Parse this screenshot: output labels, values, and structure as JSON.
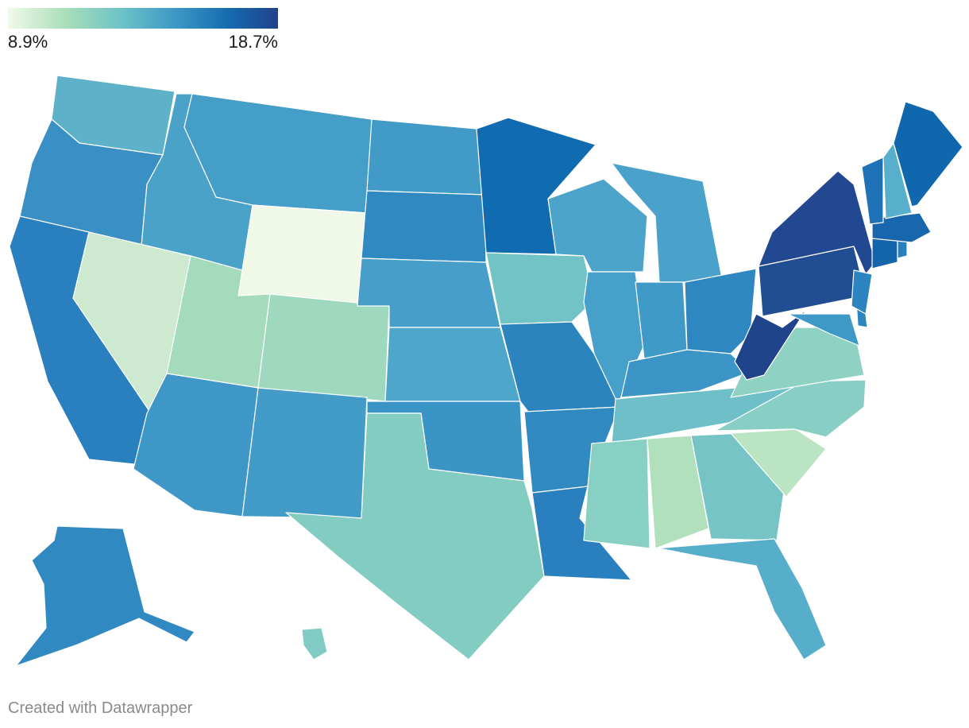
{
  "legend": {
    "min_label": "8.9%",
    "max_label": "18.7%",
    "min_value": 8.9,
    "max_value": 18.7,
    "colors": [
      "#f1f9e9",
      "#a8ddb8",
      "#6cc3c7",
      "#3d98c6",
      "#156aaf",
      "#21428a"
    ]
  },
  "credit": "Created with Datawrapper",
  "states": [
    {
      "id": "WA",
      "color": "#5db1c9"
    },
    {
      "id": "OR",
      "color": "#3a90c4"
    },
    {
      "id": "CA",
      "color": "#2a80be"
    },
    {
      "id": "ID",
      "color": "#4aa2c9"
    },
    {
      "id": "NV",
      "color": "#cdead0"
    },
    {
      "id": "MT",
      "color": "#459ec8"
    },
    {
      "id": "WY",
      "color": "#f0f8e8"
    },
    {
      "id": "UT",
      "color": "#a4dbbc"
    },
    {
      "id": "AZ",
      "color": "#3e97c7"
    },
    {
      "id": "CO",
      "color": "#9ed8bf"
    },
    {
      "id": "NM",
      "color": "#439cc8"
    },
    {
      "id": "ND",
      "color": "#429bc7"
    },
    {
      "id": "SD",
      "color": "#3089c1"
    },
    {
      "id": "NE",
      "color": "#479fc9"
    },
    {
      "id": "KS",
      "color": "#4ea6ca"
    },
    {
      "id": "OK",
      "color": "#3a94c6"
    },
    {
      "id": "TX",
      "color": "#82ccc2"
    },
    {
      "id": "MN",
      "color": "#106bb0"
    },
    {
      "id": "IA",
      "color": "#72c3c6"
    },
    {
      "id": "MO",
      "color": "#2c84bf"
    },
    {
      "id": "AR",
      "color": "#3189c2"
    },
    {
      "id": "LA",
      "color": "#2a80be"
    },
    {
      "id": "WI",
      "color": "#4ca4ca"
    },
    {
      "id": "IL",
      "color": "#47a0c9"
    },
    {
      "id": "MI",
      "color": "#4aa2ca"
    },
    {
      "id": "IN",
      "color": "#409ac8"
    },
    {
      "id": "OH",
      "color": "#2f87c1"
    },
    {
      "id": "KY",
      "color": "#3c95c6"
    },
    {
      "id": "TN",
      "color": "#6ebfc8"
    },
    {
      "id": "MS",
      "color": "#88cfc4"
    },
    {
      "id": "AL",
      "color": "#b1e0bc"
    },
    {
      "id": "GA",
      "color": "#77c4c6"
    },
    {
      "id": "FL",
      "color": "#57aecb"
    },
    {
      "id": "SC",
      "color": "#bbe4c3"
    },
    {
      "id": "NC",
      "color": "#88cec4"
    },
    {
      "id": "VA",
      "color": "#8fd1c3"
    },
    {
      "id": "WV",
      "color": "#20448b"
    },
    {
      "id": "PA",
      "color": "#214d92"
    },
    {
      "id": "NY",
      "color": "#214890"
    },
    {
      "id": "MD",
      "color": "#3f99c7"
    },
    {
      "id": "DE",
      "color": "#2d85c0"
    },
    {
      "id": "NJ",
      "color": "#2c84c0"
    },
    {
      "id": "CT",
      "color": "#1565aa"
    },
    {
      "id": "RI",
      "color": "#2a80be"
    },
    {
      "id": "MA",
      "color": "#1866ab"
    },
    {
      "id": "VT",
      "color": "#1f72b5"
    },
    {
      "id": "NH",
      "color": "#58afcb"
    },
    {
      "id": "ME",
      "color": "#1067ad"
    },
    {
      "id": "AK",
      "color": "#3089c1"
    },
    {
      "id": "HI",
      "color": "#80cbc3"
    }
  ]
}
